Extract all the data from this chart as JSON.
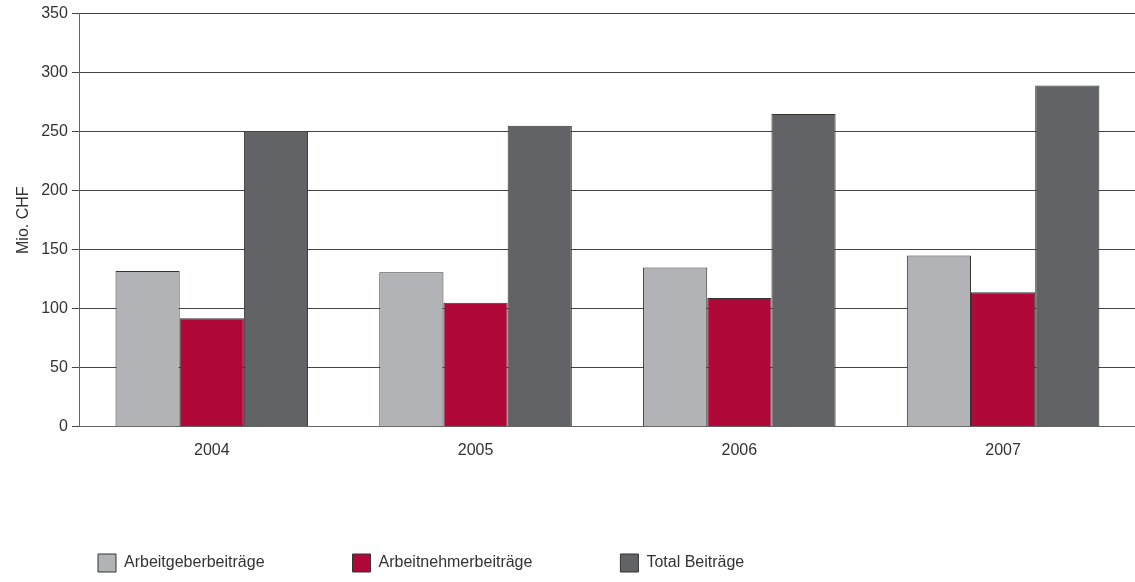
{
  "chart_data": {
    "type": "bar",
    "ylabel": "Mio. CHF",
    "categories": [
      "2004",
      "2005",
      "2006",
      "2007"
    ],
    "series": [
      {
        "name": "Arbeitgeberbeiträge",
        "color": "#b1b3b6",
        "values": [
          132,
          131,
          135,
          145
        ]
      },
      {
        "name": "Arbeitnehmerbeiträge",
        "color": "#b00838",
        "values": [
          92,
          105,
          109,
          114
        ]
      },
      {
        "name": "Total Beiträge",
        "color": "#626366",
        "values": [
          250,
          255,
          265,
          289
        ]
      }
    ],
    "ylim": [
      0,
      350
    ],
    "yticks": [
      0,
      50,
      100,
      150,
      200,
      250,
      300,
      350
    ],
    "grid": "y",
    "legend": "bottom"
  }
}
